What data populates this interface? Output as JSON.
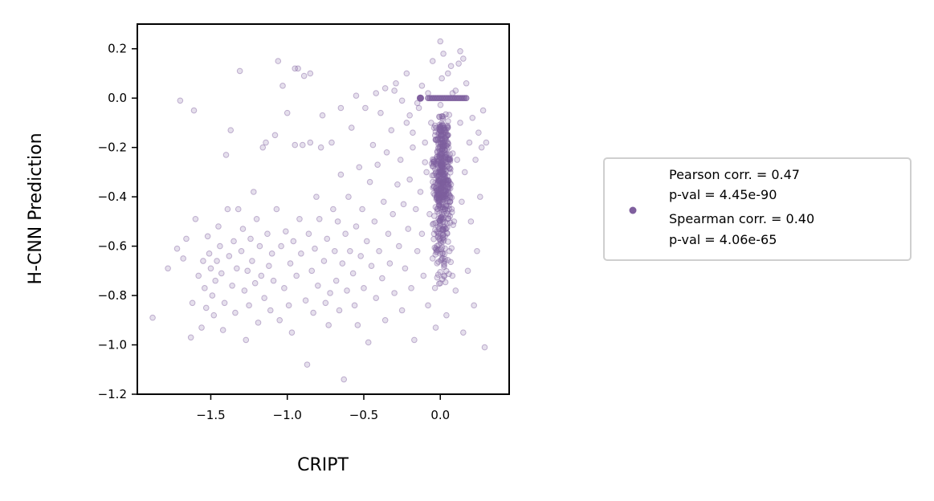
{
  "chart_data": {
    "type": "scatter",
    "xlabel": "CRIPT",
    "ylabel": "H-CNN Prediction",
    "xlim": [
      -1.98,
      0.45
    ],
    "ylim": [
      -1.2,
      0.3
    ],
    "x_ticks": [
      -1.5,
      -1.0,
      -0.5,
      0.0
    ],
    "x_tick_labels": [
      "−1.5",
      "−1.0",
      "−0.5",
      "0.0"
    ],
    "y_ticks": [
      0.2,
      0.0,
      -0.2,
      -0.4,
      -0.6,
      -0.8,
      -1.0,
      -1.2
    ],
    "y_tick_labels": [
      "0.2",
      "0.0",
      "−0.2",
      "−0.4",
      "−0.6",
      "−0.8",
      "−1.0",
      "−1.2"
    ],
    "grid": false,
    "legend_position": "right",
    "series": [
      {
        "color": "#7f5f9e",
        "alpha": 0.2,
        "legend_lines": [
          "Pearson corr. = 0.47",
          "p-val = 4.45e-90",
          "Spearman corr. = 0.40",
          "p-val = 4.06e-65"
        ],
        "points": [
          [
            -1.88,
            -0.89
          ],
          [
            -1.78,
            -0.69
          ],
          [
            -1.72,
            -0.61
          ],
          [
            -1.7,
            -0.01
          ],
          [
            -1.68,
            -0.65
          ],
          [
            -1.66,
            -0.57
          ],
          [
            -1.63,
            -0.97
          ],
          [
            -1.62,
            -0.83
          ],
          [
            -1.61,
            -0.05
          ],
          [
            -1.6,
            -0.49
          ],
          [
            -1.58,
            -0.72
          ],
          [
            -1.56,
            -0.93
          ],
          [
            -1.55,
            -0.66
          ],
          [
            -1.54,
            -0.77
          ],
          [
            -1.53,
            -0.85
          ],
          [
            -1.52,
            -0.56
          ],
          [
            -1.51,
            -0.63
          ],
          [
            -1.5,
            -0.69
          ],
          [
            -1.49,
            -0.8
          ],
          [
            -1.48,
            -0.88
          ],
          [
            -1.47,
            -0.74
          ],
          [
            -1.46,
            -0.66
          ],
          [
            -1.45,
            -0.52
          ],
          [
            -1.44,
            -0.6
          ],
          [
            -1.43,
            -0.71
          ],
          [
            -1.42,
            -0.94
          ],
          [
            -1.41,
            -0.83
          ],
          [
            -1.4,
            -0.23
          ],
          [
            -1.39,
            -0.45
          ],
          [
            -1.38,
            -0.64
          ],
          [
            -1.37,
            -0.13
          ],
          [
            -1.36,
            -0.76
          ],
          [
            -1.35,
            -0.58
          ],
          [
            -1.34,
            -0.87
          ],
          [
            -1.33,
            -0.69
          ],
          [
            -1.32,
            -0.45
          ],
          [
            -1.31,
            0.11
          ],
          [
            -1.3,
            -0.62
          ],
          [
            -1.29,
            -0.53
          ],
          [
            -1.28,
            -0.78
          ],
          [
            -1.27,
            -0.98
          ],
          [
            -1.26,
            -0.7
          ],
          [
            -1.25,
            -0.84
          ],
          [
            -1.24,
            -0.57
          ],
          [
            -1.23,
            -0.66
          ],
          [
            -1.22,
            -0.38
          ],
          [
            -1.21,
            -0.75
          ],
          [
            -1.2,
            -0.49
          ],
          [
            -1.19,
            -0.91
          ],
          [
            -1.18,
            -0.6
          ],
          [
            -1.17,
            -0.72
          ],
          [
            -1.16,
            -0.2
          ],
          [
            -1.15,
            -0.81
          ],
          [
            -1.14,
            -0.18
          ],
          [
            -1.13,
            -0.55
          ],
          [
            -1.12,
            -0.68
          ],
          [
            -1.11,
            -0.86
          ],
          [
            -1.1,
            -0.63
          ],
          [
            -1.09,
            -0.74
          ],
          [
            -1.08,
            -0.15
          ],
          [
            -1.07,
            -0.45
          ],
          [
            -1.06,
            0.15
          ],
          [
            -1.05,
            -0.9
          ],
          [
            -1.04,
            -0.6
          ],
          [
            -1.03,
            0.05
          ],
          [
            -1.02,
            -0.77
          ],
          [
            -1.01,
            -0.54
          ],
          [
            -1.0,
            -0.06
          ],
          [
            -0.99,
            -0.84
          ],
          [
            -0.98,
            -0.67
          ],
          [
            -0.97,
            -0.95
          ],
          [
            -0.96,
            -0.58
          ],
          [
            -0.95,
            -0.19
          ],
          [
            -0.94,
            -0.72
          ],
          [
            -0.93,
            0.12
          ],
          [
            -0.92,
            -0.49
          ],
          [
            -0.91,
            -0.63
          ],
          [
            -0.9,
            -0.19
          ],
          [
            -0.89,
            0.09
          ],
          [
            -0.88,
            -0.82
          ],
          [
            -0.87,
            -1.08
          ],
          [
            -0.86,
            -0.55
          ],
          [
            -0.85,
            -0.18
          ],
          [
            -0.84,
            -0.7
          ],
          [
            -0.83,
            -0.87
          ],
          [
            -0.82,
            -0.61
          ],
          [
            -0.81,
            -0.4
          ],
          [
            -0.8,
            -0.76
          ],
          [
            -0.79,
            -0.49
          ],
          [
            -0.78,
            -0.2
          ],
          [
            -0.77,
            -0.07
          ],
          [
            -0.76,
            -0.66
          ],
          [
            -0.75,
            -0.83
          ],
          [
            -0.74,
            -0.57
          ],
          [
            -0.73,
            -0.92
          ],
          [
            -0.72,
            -0.79
          ],
          [
            -0.71,
            -0.18
          ],
          [
            -0.7,
            -0.45
          ],
          [
            -0.69,
            -0.62
          ],
          [
            -0.68,
            -0.74
          ],
          [
            -0.67,
            -0.5
          ],
          [
            -0.66,
            -0.86
          ],
          [
            -0.65,
            -0.31
          ],
          [
            -0.64,
            -0.67
          ],
          [
            -0.63,
            -1.14
          ],
          [
            -0.62,
            -0.55
          ],
          [
            -0.61,
            -0.78
          ],
          [
            -0.6,
            -0.4
          ],
          [
            -0.59,
            -0.62
          ],
          [
            -0.58,
            -0.12
          ],
          [
            -0.57,
            -0.71
          ],
          [
            -0.56,
            -0.84
          ],
          [
            -0.55,
            -0.52
          ],
          [
            -0.54,
            -0.92
          ],
          [
            -0.53,
            -0.28
          ],
          [
            -0.52,
            -0.64
          ],
          [
            -0.51,
            -0.45
          ],
          [
            -0.5,
            -0.77
          ],
          [
            -0.49,
            -0.04
          ],
          [
            -0.48,
            -0.58
          ],
          [
            -0.47,
            -0.99
          ],
          [
            -0.46,
            -0.34
          ],
          [
            -0.45,
            -0.68
          ],
          [
            -0.44,
            -0.19
          ],
          [
            -0.43,
            -0.5
          ],
          [
            -0.42,
            -0.81
          ],
          [
            -0.41,
            -0.27
          ],
          [
            -0.4,
            -0.62
          ],
          [
            -0.39,
            -0.06
          ],
          [
            -0.38,
            -0.73
          ],
          [
            -0.37,
            -0.42
          ],
          [
            -0.36,
            -0.9
          ],
          [
            -0.35,
            -0.22
          ],
          [
            -0.34,
            -0.55
          ],
          [
            -0.33,
            -0.67
          ],
          [
            -0.32,
            -0.13
          ],
          [
            -0.31,
            -0.47
          ],
          [
            -0.3,
            -0.79
          ],
          [
            -0.29,
            0.06
          ],
          [
            -0.28,
            -0.35
          ],
          [
            -0.27,
            -0.6
          ],
          [
            -0.26,
            -0.25
          ],
          [
            -0.25,
            -0.86
          ],
          [
            -0.24,
            -0.43
          ],
          [
            -0.23,
            -0.69
          ],
          [
            -0.22,
            -0.1
          ],
          [
            -0.21,
            -0.53
          ],
          [
            -0.2,
            -0.33
          ],
          [
            -0.19,
            -0.77
          ],
          [
            -0.18,
            -0.2
          ],
          [
            -0.17,
            -0.98
          ],
          [
            -0.16,
            -0.45
          ],
          [
            -0.15,
            -0.62
          ],
          [
            -0.14,
            -0.04
          ],
          [
            -0.13,
            -0.38
          ],
          [
            -0.12,
            -0.55
          ],
          [
            -0.11,
            -0.72
          ],
          [
            -0.1,
            -0.18
          ],
          [
            -0.09,
            -0.3
          ],
          [
            -0.08,
            -0.84
          ],
          [
            -0.07,
            -0.47
          ],
          [
            -0.06,
            -0.1
          ],
          [
            -0.05,
            -0.65
          ],
          [
            -0.04,
            -0.36
          ],
          [
            -0.03,
            -0.93
          ],
          [
            -0.02,
            -0.22
          ],
          [
            -0.01,
            -0.55
          ],
          [
            0.0,
            -0.75
          ],
          [
            0.01,
            0.08
          ],
          [
            0.02,
            -0.28
          ],
          [
            0.03,
            -0.45
          ],
          [
            0.04,
            -0.88
          ],
          [
            0.05,
            -0.15
          ],
          [
            0.06,
            -0.62
          ],
          [
            0.07,
            -0.35
          ],
          [
            0.08,
            0.02
          ],
          [
            0.09,
            -0.5
          ],
          [
            0.1,
            -0.78
          ],
          [
            0.11,
            -0.25
          ],
          [
            0.12,
            0.14
          ],
          [
            0.13,
            -0.1
          ],
          [
            0.14,
            -0.42
          ],
          [
            0.15,
            -0.95
          ],
          [
            0.16,
            -0.3
          ],
          [
            0.17,
            0.06
          ],
          [
            0.18,
            -0.7
          ],
          [
            0.19,
            -0.18
          ],
          [
            0.2,
            -0.5
          ],
          [
            0.21,
            -0.08
          ],
          [
            0.22,
            -0.84
          ],
          [
            0.23,
            -0.25
          ],
          [
            0.24,
            -0.62
          ],
          [
            0.25,
            -0.14
          ],
          [
            0.26,
            -0.4
          ],
          [
            0.27,
            -0.2
          ],
          [
            0.28,
            -0.05
          ],
          [
            0.29,
            -1.01
          ],
          [
            0.3,
            -0.18
          ],
          [
            -0.3,
            0.03
          ],
          [
            -0.25,
            -0.01
          ],
          [
            -0.22,
            0.1
          ],
          [
            -0.2,
            -0.07
          ],
          [
            -0.18,
            -0.14
          ],
          [
            -0.15,
            -0.02
          ],
          [
            -0.12,
            0.05
          ],
          [
            -0.1,
            -0.26
          ],
          [
            -0.08,
            0.02
          ],
          [
            -0.05,
            0.15
          ],
          [
            -0.03,
            -0.17
          ],
          [
            0.0,
            0.23
          ],
          [
            0.02,
            0.18
          ],
          [
            0.05,
            0.1
          ],
          [
            0.07,
            0.13
          ],
          [
            0.1,
            0.03
          ],
          [
            0.13,
            0.19
          ],
          [
            0.15,
            0.16
          ],
          [
            -0.85,
            0.1
          ],
          [
            -0.95,
            0.12
          ],
          [
            -0.55,
            0.01
          ],
          [
            -0.42,
            0.02
          ],
          [
            -0.36,
            0.04
          ],
          [
            -0.65,
            -0.04
          ]
        ],
        "dense_cluster": {
          "x_center": 0.01,
          "x_spread": 0.075,
          "y_min": -0.82,
          "y_max": 0.03,
          "y_center": -0.26,
          "count": 520
        },
        "highlight_point": [
          -0.13,
          0.0
        ],
        "zero_row": {
          "y": 0.0,
          "x_from": -0.08,
          "x_to": 0.17,
          "count": 22
        }
      }
    ]
  }
}
